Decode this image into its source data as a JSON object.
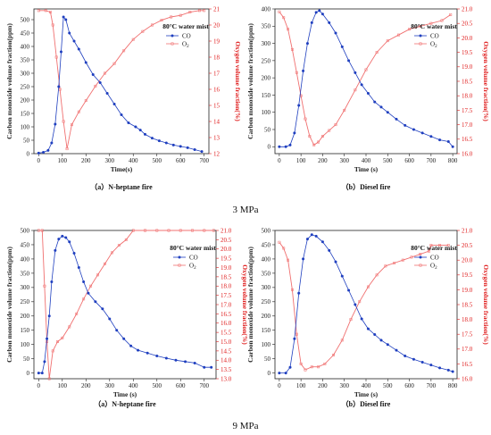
{
  "sections": [
    {
      "label": "3 MPa"
    },
    {
      "label": "9 MPa"
    }
  ],
  "colors": {
    "co": "#1f3fbf",
    "o2": "#f07070",
    "right_axis": "#e02020"
  },
  "chart_data": [
    {
      "type": "scatter",
      "caption": "（a）N-heptane fire",
      "annotation": "80°C water mist",
      "xlabel": "Time(s)",
      "ylabel": "Carbon monoxide volume fraction(ppm)",
      "y2label": "Oxygen volume fraction(%)",
      "xlim": [
        -20,
        720
      ],
      "xticks": [
        0,
        100,
        200,
        300,
        400,
        500,
        600,
        700
      ],
      "ylim": [
        0,
        540
      ],
      "yticks": [
        0,
        50,
        100,
        150,
        200,
        250,
        300,
        350,
        400,
        450,
        500
      ],
      "y2lim": [
        12,
        21
      ],
      "y2ticks": [
        12,
        13,
        14,
        15,
        16,
        17,
        18,
        19,
        20,
        21
      ],
      "legend": {
        "position": "right",
        "co": "CO",
        "o2": "O",
        "o2_sub": "2"
      },
      "series": [
        {
          "name": "CO",
          "axis": "left",
          "x": [
            0,
            20,
            40,
            55,
            70,
            85,
            95,
            105,
            115,
            130,
            150,
            170,
            200,
            230,
            260,
            290,
            320,
            350,
            380,
            410,
            430,
            450,
            480,
            510,
            540,
            570,
            600,
            630,
            660,
            690
          ],
          "y": [
            2,
            5,
            12,
            40,
            110,
            250,
            380,
            510,
            500,
            450,
            420,
            390,
            340,
            295,
            265,
            225,
            185,
            145,
            115,
            100,
            88,
            72,
            58,
            48,
            40,
            32,
            27,
            22,
            15,
            8
          ]
        },
        {
          "name": "O2",
          "axis": "right",
          "x": [
            0,
            30,
            50,
            60,
            75,
            90,
            105,
            120,
            140,
            170,
            200,
            240,
            280,
            320,
            360,
            400,
            440,
            480,
            520,
            560,
            600,
            640,
            680,
            700
          ],
          "y": [
            20.9,
            20.9,
            20.8,
            20.0,
            18.0,
            16.0,
            14.0,
            12.3,
            13.8,
            14.6,
            15.3,
            16.2,
            17.0,
            17.6,
            18.4,
            19.1,
            19.6,
            20.0,
            20.3,
            20.5,
            20.6,
            20.8,
            20.9,
            20.9
          ]
        }
      ]
    },
    {
      "type": "scatter",
      "caption": "（b）Diesel fire",
      "annotation": "80°C water mist",
      "xlabel": "Time (s)",
      "ylabel": "Carbon monoxide volume fraction(ppm)",
      "y2label": "Oxygen volume fraction(%)",
      "xlim": [
        -20,
        820
      ],
      "xticks": [
        0,
        100,
        200,
        300,
        400,
        500,
        600,
        700,
        800
      ],
      "ylim": [
        -20,
        400
      ],
      "yticks": [
        0,
        50,
        100,
        150,
        200,
        250,
        300,
        350,
        400
      ],
      "y2lim": [
        16,
        21
      ],
      "y2ticks": [
        16.0,
        16.5,
        17.0,
        17.5,
        18.0,
        18.5,
        19.0,
        19.5,
        20.0,
        20.5,
        21.0
      ],
      "legend": {
        "position": "right",
        "co": "CO",
        "o2": "O",
        "o2_sub": "2"
      },
      "series": [
        {
          "name": "CO",
          "axis": "left",
          "x": [
            0,
            30,
            50,
            70,
            90,
            110,
            130,
            150,
            170,
            185,
            200,
            230,
            260,
            290,
            320,
            350,
            380,
            410,
            440,
            470,
            500,
            540,
            580,
            620,
            660,
            700,
            740,
            780,
            800
          ],
          "y": [
            0,
            0,
            5,
            40,
            120,
            220,
            300,
            360,
            390,
            395,
            385,
            360,
            330,
            290,
            250,
            215,
            180,
            155,
            130,
            115,
            100,
            80,
            62,
            50,
            40,
            30,
            20,
            15,
            0
          ]
        },
        {
          "name": "O2",
          "axis": "right",
          "x": [
            0,
            20,
            40,
            60,
            80,
            100,
            120,
            140,
            160,
            180,
            200,
            230,
            260,
            300,
            350,
            400,
            450,
            500,
            550,
            600,
            650,
            700,
            750,
            790
          ],
          "y": [
            20.9,
            20.7,
            20.3,
            19.6,
            18.8,
            18.0,
            17.2,
            16.6,
            16.3,
            16.4,
            16.6,
            16.8,
            17.0,
            17.5,
            18.2,
            18.9,
            19.5,
            19.9,
            20.1,
            20.3,
            20.4,
            20.5,
            20.6,
            20.8
          ]
        }
      ]
    },
    {
      "type": "scatter",
      "caption": "（a）N-heptane fire",
      "annotation": "80°C water mist",
      "xlabel": "Time (s)",
      "ylabel": "Carbon monoxide volume fraction(ppm)",
      "y2label": "Oxygen volume fraction(%)",
      "xlim": [
        -20,
        750
      ],
      "xticks": [
        0,
        100,
        200,
        300,
        400,
        500,
        600,
        700
      ],
      "ylim": [
        -20,
        500
      ],
      "yticks": [
        0,
        50,
        100,
        150,
        200,
        250,
        300,
        350,
        400,
        450,
        500
      ],
      "y2lim": [
        13,
        21
      ],
      "y2ticks": [
        13.0,
        13.5,
        14.0,
        14.5,
        15.0,
        15.5,
        16.0,
        16.5,
        17.0,
        17.5,
        18.0,
        18.5,
        19.0,
        19.5,
        20.0,
        20.5,
        21.0
      ],
      "legend": {
        "position": "right",
        "co": "CO",
        "o2": "O",
        "o2_sub": "2"
      },
      "series": [
        {
          "name": "CO",
          "axis": "left",
          "x": [
            0,
            15,
            25,
            35,
            45,
            55,
            70,
            85,
            100,
            115,
            130,
            150,
            170,
            190,
            210,
            240,
            270,
            300,
            330,
            360,
            390,
            420,
            460,
            500,
            540,
            580,
            620,
            660,
            700,
            730
          ],
          "y": [
            0,
            0,
            40,
            120,
            200,
            320,
            430,
            470,
            480,
            475,
            460,
            420,
            370,
            320,
            280,
            250,
            225,
            190,
            150,
            120,
            95,
            80,
            70,
            60,
            52,
            45,
            40,
            35,
            20,
            20
          ]
        },
        {
          "name": "O2",
          "axis": "right",
          "x": [
            0,
            15,
            25,
            35,
            45,
            60,
            80,
            100,
            130,
            160,
            190,
            220,
            250,
            280,
            310,
            340,
            370,
            400,
            450,
            500,
            550,
            600,
            650,
            700,
            740
          ],
          "y": [
            21.0,
            21.0,
            18.0,
            15.0,
            13.0,
            14.5,
            15.0,
            15.2,
            15.8,
            16.5,
            17.3,
            18.0,
            18.6,
            19.2,
            19.8,
            20.2,
            20.5,
            21.0,
            21.0,
            21.0,
            21.0,
            21.0,
            21.0,
            21.0,
            21.0
          ]
        }
      ]
    },
    {
      "type": "scatter",
      "caption": "（b）Diesel fire",
      "annotation": "80°C water mist",
      "xlabel": "Time (s)",
      "ylabel": "Carbon monoxide volume fraction(ppm)",
      "y2label": "Oxygen volume fraction(%)",
      "xlim": [
        -20,
        820
      ],
      "xticks": [
        0,
        100,
        200,
        300,
        400,
        500,
        600,
        700,
        800
      ],
      "ylim": [
        -20,
        500
      ],
      "yticks": [
        0,
        50,
        100,
        150,
        200,
        250,
        300,
        350,
        400,
        450,
        500
      ],
      "y2lim": [
        16,
        21
      ],
      "y2ticks": [
        16.0,
        16.5,
        17.0,
        17.5,
        18.0,
        18.5,
        19.0,
        19.5,
        20.0,
        20.5,
        21.0
      ],
      "legend": {
        "position": "right",
        "co": "CO",
        "o2": "O",
        "o2_sub": "2"
      },
      "series": [
        {
          "name": "CO",
          "axis": "left",
          "x": [
            0,
            30,
            50,
            70,
            90,
            110,
            130,
            150,
            170,
            200,
            230,
            260,
            290,
            320,
            350,
            380,
            410,
            440,
            470,
            500,
            540,
            580,
            620,
            660,
            700,
            740,
            780,
            800
          ],
          "y": [
            0,
            0,
            20,
            120,
            280,
            400,
            470,
            485,
            480,
            460,
            430,
            390,
            340,
            290,
            240,
            190,
            155,
            135,
            115,
            100,
            80,
            60,
            48,
            38,
            28,
            18,
            10,
            5
          ]
        },
        {
          "name": "O2",
          "axis": "right",
          "x": [
            0,
            20,
            40,
            60,
            80,
            100,
            120,
            150,
            180,
            210,
            250,
            290,
            330,
            370,
            410,
            450,
            490,
            530,
            570,
            610,
            650,
            690,
            700,
            740,
            780
          ],
          "y": [
            20.6,
            20.4,
            20.0,
            19.0,
            17.5,
            16.5,
            16.3,
            16.4,
            16.4,
            16.5,
            16.8,
            17.3,
            18.0,
            18.6,
            19.1,
            19.5,
            19.8,
            19.9,
            20.0,
            20.1,
            20.2,
            20.3,
            20.5,
            20.5,
            20.5
          ]
        }
      ]
    }
  ]
}
